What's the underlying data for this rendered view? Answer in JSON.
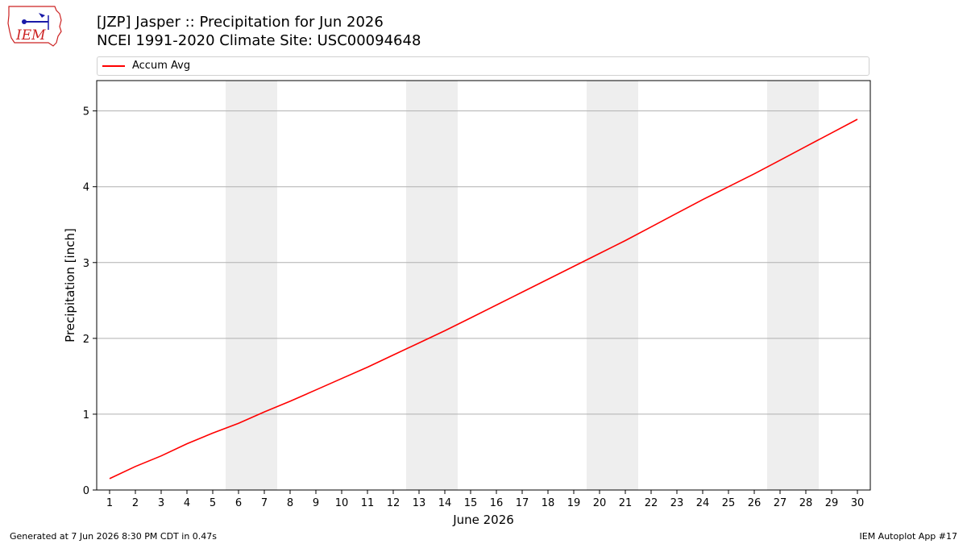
{
  "header": {
    "logo_text": "IEM",
    "title_line1": "[JZP] Jasper :: Precipitation for Jun 2026",
    "title_line2": "NCEI 1991-2020 Climate Site: USC00094648"
  },
  "footer": {
    "left": "Generated at 7 Jun 2026 8:30 PM CDT in 0.47s",
    "right": "IEM Autoplot App #17"
  },
  "colors": {
    "series": "#ff0000",
    "weekend_shade": "#eeeeee",
    "grid": "#b0b0b0",
    "logo_red": "#cc2222",
    "logo_blue": "#1a1aa8"
  },
  "chart_data": {
    "type": "line",
    "xlabel": "June 2026",
    "ylabel": "Precipitation [inch]",
    "xlim": [
      0.5,
      30.5
    ],
    "ylim": [
      0,
      5.4
    ],
    "yticks": [
      0,
      1,
      2,
      3,
      4,
      5
    ],
    "x": [
      1,
      2,
      3,
      4,
      5,
      6,
      7,
      8,
      9,
      10,
      11,
      12,
      13,
      14,
      15,
      16,
      17,
      18,
      19,
      20,
      21,
      22,
      23,
      24,
      25,
      26,
      27,
      28,
      29,
      30
    ],
    "series": [
      {
        "name": "Accum Avg",
        "values": [
          0.15,
          0.31,
          0.45,
          0.61,
          0.75,
          0.88,
          1.03,
          1.17,
          1.32,
          1.47,
          1.62,
          1.78,
          1.94,
          2.1,
          2.27,
          2.44,
          2.61,
          2.78,
          2.95,
          3.12,
          3.29,
          3.47,
          3.65,
          3.83,
          4.0,
          4.17,
          4.35,
          4.53,
          4.71,
          4.89
        ]
      }
    ],
    "shaded_days": [
      [
        6,
        7
      ],
      [
        13,
        14
      ],
      [
        20,
        21
      ],
      [
        27,
        28
      ]
    ],
    "grid": "horizontal",
    "legend_position": "top"
  }
}
